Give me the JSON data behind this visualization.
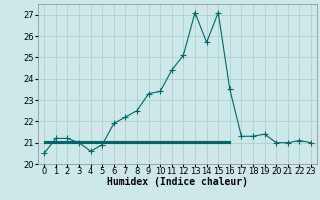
{
  "xlabel": "Humidex (Indice chaleur)",
  "x": [
    0,
    1,
    2,
    3,
    4,
    5,
    6,
    7,
    8,
    9,
    10,
    11,
    12,
    13,
    14,
    15,
    16,
    17,
    18,
    19,
    20,
    21,
    22,
    23
  ],
  "y_main": [
    20.5,
    21.2,
    21.2,
    21.0,
    20.6,
    20.9,
    21.9,
    22.2,
    22.5,
    23.3,
    23.4,
    24.4,
    25.1,
    27.1,
    25.7,
    27.1,
    23.5,
    21.3,
    21.3,
    21.4,
    21.0,
    21.0,
    21.1,
    21.0
  ],
  "y_flat1": [
    21.1,
    21.1,
    21.1,
    21.1,
    21.1,
    21.1,
    21.1,
    21.1,
    21.1,
    21.1,
    21.1,
    21.1,
    21.1,
    21.1,
    21.1,
    21.1,
    21.1
  ],
  "x_flat1": [
    0,
    1,
    2,
    3,
    4,
    5,
    6,
    7,
    8,
    9,
    10,
    11,
    12,
    13,
    14,
    15,
    16
  ],
  "y_flat2": [
    21.0,
    21.0,
    21.0,
    21.0,
    21.0,
    21.0,
    21.0,
    21.0,
    21.0,
    21.0,
    21.0,
    21.0,
    21.0,
    21.0,
    21.0,
    21.0,
    21.0
  ],
  "x_flat2": [
    0,
    1,
    2,
    3,
    4,
    5,
    6,
    7,
    8,
    9,
    10,
    11,
    12,
    13,
    14,
    15,
    16
  ],
  "y_flat3": [
    21.05,
    21.05,
    21.05,
    21.05,
    21.05,
    21.05,
    21.05,
    21.05,
    21.05,
    21.05,
    21.05,
    21.05,
    21.05,
    21.05,
    21.05,
    21.05,
    21.05
  ],
  "x_flat3": [
    0,
    1,
    2,
    3,
    4,
    5,
    6,
    7,
    8,
    9,
    10,
    11,
    12,
    13,
    14,
    15,
    16
  ],
  "line_color": "#006666",
  "bg_color": "#cce8e8",
  "grid_color": "#aacccc",
  "ylim": [
    20,
    27.5
  ],
  "yticks": [
    20,
    21,
    22,
    23,
    24,
    25,
    26,
    27
  ],
  "xticks": [
    0,
    1,
    2,
    3,
    4,
    5,
    6,
    7,
    8,
    9,
    10,
    11,
    12,
    13,
    14,
    15,
    16,
    17,
    18,
    19,
    20,
    21,
    22,
    23
  ],
  "xlim": [
    -0.5,
    23.5
  ],
  "marker": "+",
  "markersize": 4,
  "linewidth": 0.8,
  "xlabel_fontsize": 7,
  "tick_fontsize": 6
}
